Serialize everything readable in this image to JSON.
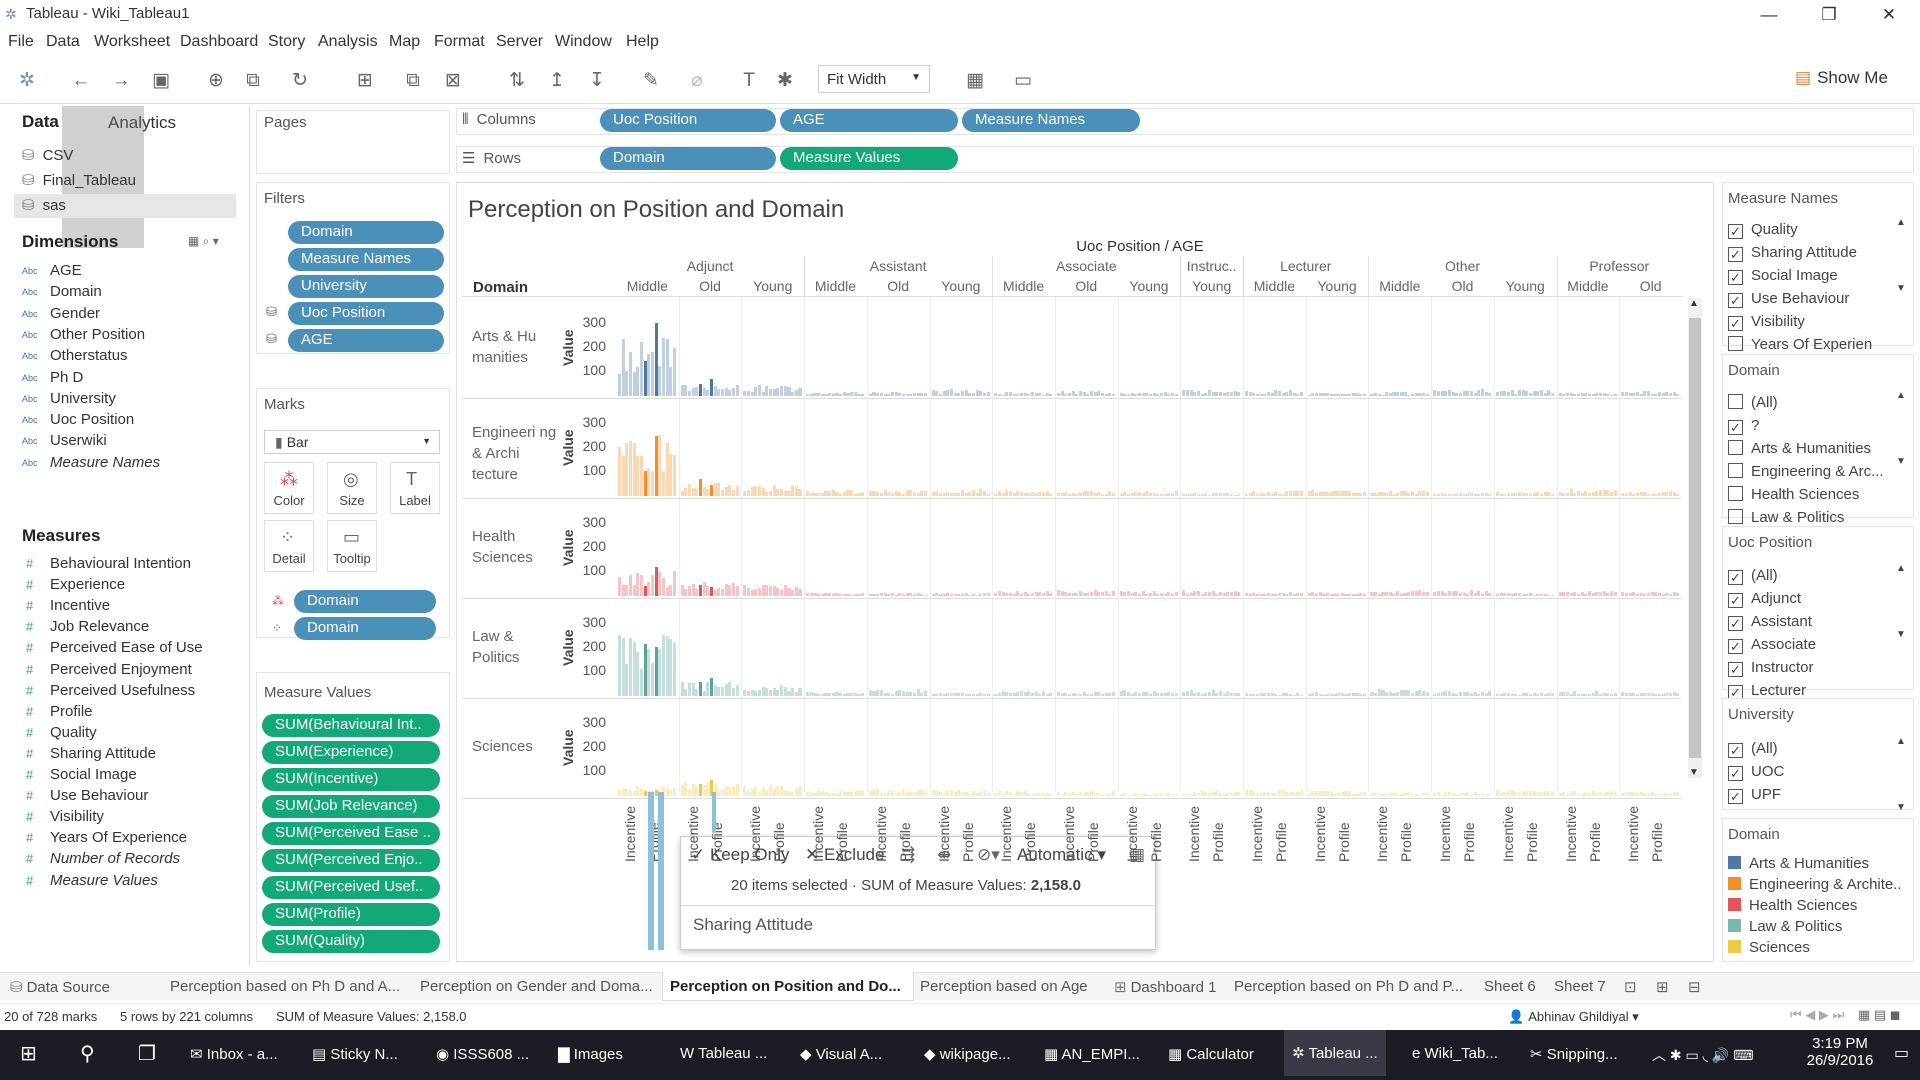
{
  "window": {
    "title": "Tableau - Wiki_Tableau1"
  },
  "menu": [
    "File",
    "Data",
    "Worksheet",
    "Dashboard",
    "Story",
    "Analysis",
    "Map",
    "Format",
    "Server",
    "Window",
    "Help"
  ],
  "toolbar": {
    "fit": "Fit Width",
    "show_me": "Show Me"
  },
  "data_pane": {
    "tab_data": "Data",
    "tab_analytics": "Analytics",
    "sources": [
      "CSV",
      "Final_Tableau",
      "sas"
    ],
    "dimensions_label": "Dimensions",
    "dimensions": [
      "AGE",
      "Domain",
      "Gender",
      "Other Position",
      "Otherstatus",
      "Ph D",
      "University",
      "Uoc Position",
      "Userwiki",
      "Measure Names"
    ],
    "measures_label": "Measures",
    "measures": [
      "Behavioural Intention",
      "Experience",
      "Incentive",
      "Job Relevance",
      "Perceived Ease of Use",
      "Perceived Enjoyment",
      "Perceived Usefulness",
      "Profile",
      "Quality",
      "Sharing Attitude",
      "Social Image",
      "Use Behaviour",
      "Visibility",
      "Years Of Experience",
      "Number of Records",
      "Measure Values"
    ]
  },
  "pages_label": "Pages",
  "filters": {
    "label": "Filters",
    "items": [
      "Domain",
      "Measure Names",
      "University",
      "Uoc Position",
      "AGE"
    ]
  },
  "marks": {
    "label": "Marks",
    "type": "Bar",
    "buttons": [
      "Color",
      "Size",
      "Label",
      "Detail",
      "Tooltip"
    ],
    "pills": [
      "Domain",
      "Domain"
    ]
  },
  "measure_values": {
    "label": "Measure Values",
    "items": [
      "SUM(Behavioural Int..",
      "SUM(Experience)",
      "SUM(Incentive)",
      "SUM(Job Relevance)",
      "SUM(Perceived Ease ..",
      "SUM(Perceived Enjo..",
      "SUM(Perceived Usef..",
      "SUM(Profile)",
      "SUM(Quality)"
    ]
  },
  "shelves": {
    "columns_label": "Columns",
    "rows_label": "Rows",
    "columns": [
      "Uoc Position",
      "AGE",
      "Measure Names"
    ],
    "rows": [
      "Domain",
      "Measure Values"
    ]
  },
  "chart": {
    "title": "Perception on Position and Domain",
    "header": "Uoc Position / AGE",
    "domain_header": "Domain",
    "positions": [
      {
        "name": "Adjunct",
        "ages": [
          "Middle",
          "Old",
          "Young"
        ]
      },
      {
        "name": "Assistant",
        "ages": [
          "Middle",
          "Old",
          "Young"
        ]
      },
      {
        "name": "Associate",
        "ages": [
          "Middle",
          "Old",
          "Young"
        ]
      },
      {
        "name": "Instruc..",
        "ages": [
          "Young"
        ]
      },
      {
        "name": "Lecturer",
        "ages": [
          "Middle",
          "Young"
        ]
      },
      {
        "name": "Other",
        "ages": [
          "Middle",
          "Old",
          "Young"
        ]
      },
      {
        "name": "Professor",
        "ages": [
          "Middle",
          "Old"
        ]
      }
    ],
    "rows": [
      {
        "label": "Arts & Hu manities",
        "color": "#4e79a7"
      },
      {
        "label": "Engineeri ng & Archi tecture",
        "color": "#f28e2b"
      },
      {
        "label": "Health Sciences",
        "color": "#e15759"
      },
      {
        "label": "Law & Politics",
        "color": "#5fa29a"
      },
      {
        "label": "Sciences",
        "color": "#edc948"
      }
    ],
    "value_label": "Value",
    "ticks": [
      "300",
      "200",
      "100"
    ],
    "xlabels": [
      "Incentive",
      "Profile"
    ]
  },
  "tooltip": {
    "keep": "Keep Only",
    "exclude": "Exclude",
    "automatic": "Automatic",
    "selected": "20 items selected",
    "sum_label": "SUM of Measure Values:",
    "sum_value": "2,158.0",
    "field": "Sharing Attitude"
  },
  "right": {
    "measure_names": {
      "label": "Measure Names",
      "items": [
        "Quality",
        "Sharing Attitude",
        "Social Image",
        "Use Behaviour",
        "Visibility",
        "Years Of Experien"
      ]
    },
    "domain": {
      "label": "Domain",
      "items": [
        "(All)",
        "?",
        "Arts & Humanities",
        "Engineering & Arc...",
        "Health Sciences",
        "Law & Politics"
      ]
    },
    "uoc": {
      "label": "Uoc Position",
      "items": [
        "(All)",
        "Adjunct",
        "Assistant",
        "Associate",
        "Instructor",
        "Lecturer"
      ]
    },
    "university": {
      "label": "University",
      "items": [
        "(All)",
        "UOC",
        "UPF"
      ]
    },
    "legend": {
      "label": "Domain",
      "items": [
        {
          "name": "Arts & Humanities",
          "color": "#4e79a7"
        },
        {
          "name": "Engineering & Archite..",
          "color": "#f28e2b"
        },
        {
          "name": "Health Sciences",
          "color": "#e15759"
        },
        {
          "name": "Law & Politics",
          "color": "#76b7b2"
        },
        {
          "name": "Sciences",
          "color": "#edc948"
        }
      ]
    }
  },
  "tabs": [
    "Data Source",
    "Perception based on Ph D and A...",
    "Perception on Gender and Doma...",
    "Perception on Position and Do...",
    "Perception based on Age",
    "Dashboard 1",
    "Perception based on Ph D and P...",
    "Sheet 6",
    "Sheet 7"
  ],
  "status": {
    "marks": "20 of 728 marks",
    "rows": "5 rows by 221 columns",
    "sum": "SUM of Measure Values: 2,158.0",
    "user": "Abhinav Ghildiyal"
  },
  "taskbar": {
    "items": [
      "Inbox - a...",
      "Sticky N...",
      "ISSS608 ...",
      "Images",
      "Tableau ...",
      "Visual A...",
      "wikipage...",
      "AN_EMPI...",
      "Calculator",
      "Tableau ...",
      "Wiki_Tab...",
      "Snipping..."
    ],
    "time": "3:19 PM",
    "date": "26/9/2016"
  }
}
